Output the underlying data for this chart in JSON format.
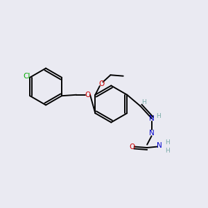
{
  "bg_color": "#eaeaf2",
  "atom_colors": {
    "C": "#000000",
    "H": "#7aaba8",
    "N": "#0000cc",
    "O": "#cc0000",
    "Cl": "#00aa00"
  },
  "bond_color": "#000000",
  "bond_width": 1.4
}
